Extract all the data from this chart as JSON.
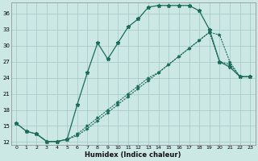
{
  "xlabel": "Humidex (Indice chaleur)",
  "bg_color": "#cce8e4",
  "grid_color": "#aacccc",
  "line_color": "#1a6b5a",
  "xlim": [
    -0.5,
    23.5
  ],
  "ylim": [
    11.5,
    38.0
  ],
  "xticks": [
    0,
    1,
    2,
    3,
    4,
    5,
    6,
    7,
    8,
    9,
    10,
    11,
    12,
    13,
    14,
    15,
    16,
    17,
    18,
    19,
    20,
    21,
    22,
    23
  ],
  "yticks": [
    12,
    15,
    18,
    21,
    24,
    27,
    30,
    33,
    36
  ],
  "curve1_x": [
    0,
    1,
    2,
    3,
    4,
    5,
    6,
    7,
    8,
    9,
    10,
    11,
    12,
    13,
    14,
    15,
    16,
    17,
    18,
    19,
    20,
    21,
    22,
    23
  ],
  "curve1_y": [
    15.5,
    14.0,
    13.5,
    12.1,
    12.1,
    12.5,
    19.0,
    25.0,
    30.5,
    27.5,
    30.5,
    33.5,
    35.0,
    37.2,
    37.5,
    37.5,
    37.5,
    37.5,
    36.5,
    33.0,
    27.0,
    26.0,
    24.2,
    24.2
  ],
  "curve2_x": [
    2,
    3,
    4,
    5,
    6,
    7,
    8,
    9,
    10,
    11,
    12,
    13,
    14,
    15,
    16,
    17,
    18,
    19,
    20,
    21,
    22,
    23
  ],
  "curve2_y": [
    13.5,
    12.1,
    12.1,
    12.5,
    13.5,
    15.0,
    16.5,
    18.0,
    19.5,
    21.0,
    22.5,
    24.0,
    25.0,
    26.5,
    28.0,
    29.5,
    31.0,
    32.5,
    27.0,
    26.5,
    24.2,
    24.2
  ],
  "curve3_x": [
    0,
    1,
    2,
    3,
    4,
    5,
    6,
    7,
    8,
    9,
    10,
    11,
    12,
    13,
    14,
    15,
    16,
    17,
    18,
    19,
    20,
    21,
    22,
    23
  ],
  "curve3_y": [
    15.5,
    14.0,
    13.5,
    12.1,
    12.1,
    12.5,
    13.2,
    14.5,
    16.0,
    17.5,
    19.0,
    20.5,
    22.0,
    23.5,
    25.0,
    26.5,
    28.0,
    29.5,
    31.0,
    32.5,
    32.0,
    27.0,
    24.2,
    24.2
  ]
}
